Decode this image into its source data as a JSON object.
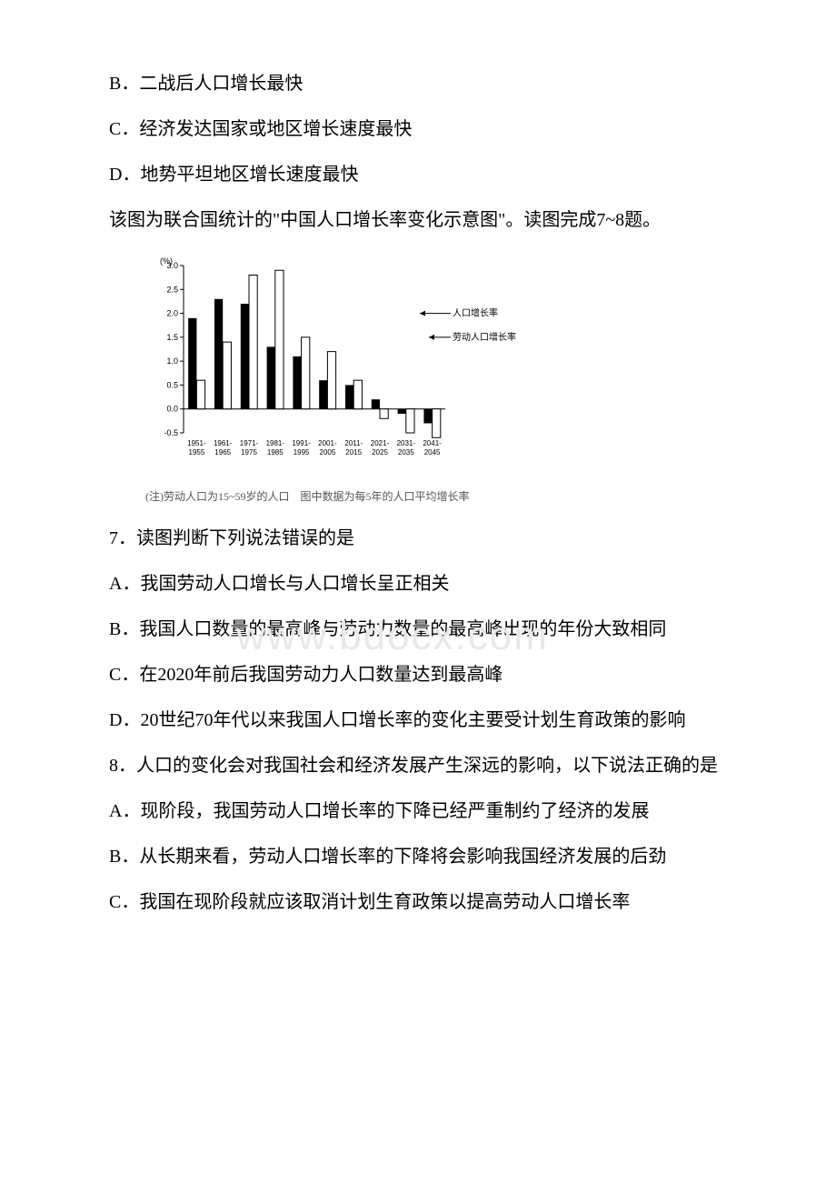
{
  "options_top": {
    "b": "B．二战后人口增长最快",
    "c": "C．经济发达国家或地区增长速度最快",
    "d": "D．地势平坦地区增长速度最快"
  },
  "intro7": "该图为联合国统计的\"中国人口增长率变化示意图\"。读图完成7~8题。",
  "chart": {
    "type": "bar",
    "y_label": "(%)",
    "y_ticks": [
      "3.0",
      "2.5",
      "2.0",
      "1.5",
      "1.0",
      "0.5",
      "0.0",
      "-0.5"
    ],
    "y_min": -0.5,
    "y_max": 3.0,
    "x_labels": [
      "1951-\n1955",
      "1961-\n1965",
      "1971-\n1975",
      "1981-\n1985",
      "1991-\n1995",
      "2001-\n2005",
      "2011-\n2015",
      "2021-\n2025",
      "2031-\n2035",
      "2041-\n2045"
    ],
    "series": {
      "pop": {
        "label": "人口增长率",
        "color": "#000000",
        "values": [
          1.9,
          2.3,
          2.2,
          1.3,
          1.1,
          0.6,
          0.5,
          0.2,
          -0.1,
          -0.3
        ]
      },
      "labor": {
        "label": "劳动人口增长率",
        "color": "#ffffff",
        "border": "#000000",
        "values": [
          0.6,
          1.4,
          2.8,
          2.9,
          1.5,
          1.2,
          0.6,
          -0.2,
          -0.5,
          -0.6
        ]
      }
    },
    "grid_color": "#bfbfbf",
    "axis_color": "#000000",
    "bg": "#ffffff",
    "tick_fontsize": 9,
    "caption": "(注)劳动人口为15~59岁的人口　图中数据为每5年的人口平均增长率"
  },
  "q7": {
    "stem": "7．读图判断下列说法错误的是",
    "a": "A．我国劳动人口增长与人口增长呈正相关",
    "b": "B．我国人口数量的最高峰与劳动力数量的最高峰出现的年份大致相同",
    "c": "C．在2020年前后我国劳动力人口数量达到最高峰",
    "d": "D．20世纪70年代以来我国人口增长率的变化主要受计划生育政策的影响"
  },
  "q8": {
    "stem": "8．人口的变化会对我国社会和经济发展产生深远的影响，以下说法正确的是",
    "a": "A．现阶段，我国劳动人口增长率的下降已经严重制约了经济的发展",
    "b": "B．从长期来看，劳动人口增长率的下降将会影响我国经济发展的后劲",
    "c": "C．我国在现阶段就应该取消计划生育政策以提高劳动人口增长率"
  },
  "watermark": "www.bdocx.com"
}
